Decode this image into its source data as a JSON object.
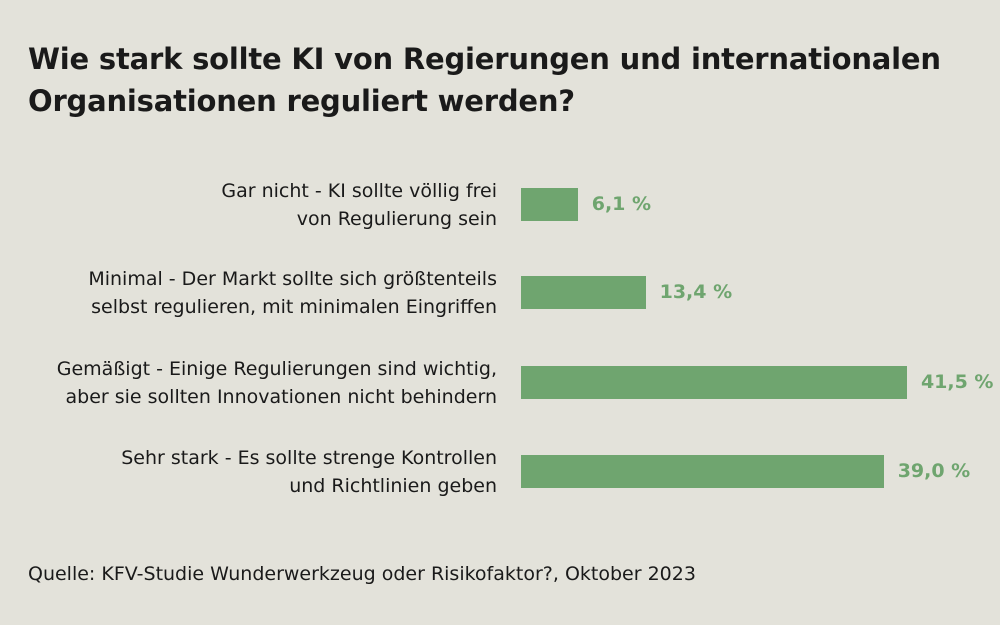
{
  "chart_data": {
    "type": "bar",
    "orientation": "horizontal",
    "title": "Wie stark sollte KI von Regierungen und internationalen Organisationen reguliert werden?",
    "categories": [
      [
        "Gar nicht - KI sollte völlig frei",
        "von Regulierung sein"
      ],
      [
        "Minimal - Der Markt sollte sich größtenteils",
        "selbst regulieren, mit minimalen Eingriffen"
      ],
      [
        "Gemäßigt - Einige Regulierungen sind wichtig,",
        "aber sie sollten Innovationen nicht behindern"
      ],
      [
        "Sehr stark - Es sollte strenge Kontrollen",
        "und Richtlinien geben"
      ]
    ],
    "values": [
      6.1,
      13.4,
      41.5,
      39.0
    ],
    "value_labels": [
      "6,1 %",
      "13,4 %",
      "41,5 %",
      "39,0 %"
    ],
    "unit": "%",
    "bar_color": "#6fa56f",
    "value_color": "#6fa56f",
    "background": "#e3e2da",
    "grid": false,
    "legend": "none"
  },
  "source": "Quelle: KFV-Studie Wunderwerkzeug oder Risikofaktor?, Oktober 2023"
}
